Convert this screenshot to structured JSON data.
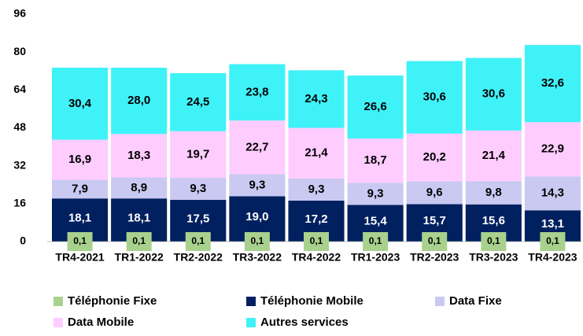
{
  "chart_data": {
    "type": "stacked_bar",
    "categories": [
      "TR4-2021",
      "TR1-2022",
      "TR2-2022",
      "TR3-2022",
      "TR4-2022",
      "TR1-2023",
      "TR2-2023",
      "TR3-2023",
      "TR4-2023"
    ],
    "ylim": [
      0,
      96
    ],
    "yticks": [
      0,
      16,
      32,
      48,
      64,
      80,
      96
    ],
    "series": [
      {
        "name": "Téléphonie Fixe",
        "color": "#a9d18e",
        "values": [
          0.1,
          0.1,
          0.1,
          0.1,
          0.1,
          0.1,
          0.1,
          0.1,
          0.1
        ],
        "value_labels": [
          "0,1",
          "0,1",
          "0,1",
          "0,1",
          "0,1",
          "0,1",
          "0,1",
          "0,1",
          "0,1"
        ]
      },
      {
        "name": "Téléphonie Mobile",
        "color": "#002060",
        "values": [
          18.1,
          18.1,
          17.5,
          19.0,
          17.2,
          15.4,
          15.7,
          15.6,
          13.1
        ],
        "value_labels": [
          "18,1",
          "18,1",
          "17,5",
          "19,0",
          "17,2",
          "15,4",
          "15,7",
          "15,6",
          "13,1"
        ]
      },
      {
        "name": "Data Fixe",
        "color": "#c9c9f2",
        "values": [
          7.9,
          8.9,
          9.3,
          9.3,
          9.3,
          9.3,
          9.6,
          9.8,
          14.3
        ],
        "value_labels": [
          "7,9",
          "8,9",
          "9,3",
          "9,3",
          "9,3",
          "9,3",
          "9,6",
          "9,8",
          "14,3"
        ]
      },
      {
        "name": "Data Mobile",
        "color": "#ffccff",
        "values": [
          16.9,
          18.3,
          19.7,
          22.7,
          21.4,
          18.7,
          20.2,
          21.4,
          22.9
        ],
        "value_labels": [
          "16,9",
          "18,3",
          "19,7",
          "22,7",
          "21,4",
          "18,7",
          "20,2",
          "21,4",
          "22,9"
        ]
      },
      {
        "name": "Autres services",
        "color": "#3ff2f8",
        "values": [
          30.4,
          28.0,
          24.5,
          23.8,
          24.3,
          26.6,
          30.6,
          30.6,
          32.6
        ],
        "value_labels": [
          "30,4",
          "28,0",
          "24,5",
          "23,8",
          "24,3",
          "26,6",
          "30,6",
          "30,6",
          "32,6"
        ]
      }
    ]
  }
}
